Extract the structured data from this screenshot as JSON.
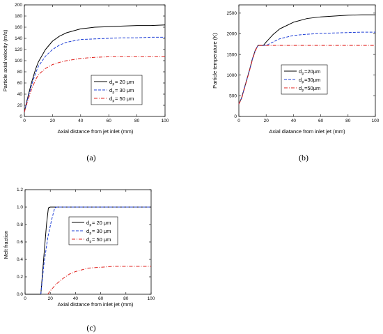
{
  "chart_data": [
    {
      "type": "line",
      "panel_label": "(a)",
      "xlabel": "Axial distance from jet inlet (mm)",
      "ylabel": "Particle axial velocity (m/s)",
      "xlim": [
        0,
        100
      ],
      "ylim": [
        0,
        200
      ],
      "xticks": [
        0,
        20,
        40,
        60,
        80,
        100
      ],
      "yticks": [
        0,
        20,
        40,
        60,
        80,
        100,
        120,
        140,
        160,
        180,
        200
      ],
      "legend_position": "right",
      "series": [
        {
          "name": "dp= 20 μm",
          "color": "#000000",
          "dash": "solid",
          "x": [
            0,
            2,
            5,
            8,
            10,
            15,
            20,
            25,
            30,
            40,
            50,
            60,
            70,
            80,
            90,
            100
          ],
          "y": [
            8,
            30,
            60,
            85,
            98,
            120,
            135,
            144,
            150,
            157,
            160,
            161,
            162,
            163,
            163,
            164
          ]
        },
        {
          "name": "dp= 30 μm",
          "color": "#1f3fd6",
          "dash": "dashed",
          "x": [
            0,
            2,
            5,
            8,
            10,
            15,
            20,
            25,
            30,
            40,
            50,
            60,
            70,
            80,
            90,
            100
          ],
          "y": [
            8,
            28,
            55,
            78,
            90,
            108,
            120,
            128,
            133,
            138,
            139,
            140,
            141,
            141,
            142,
            142
          ]
        },
        {
          "name": "dp= 50 μm",
          "color": "#e0201c",
          "dash": "dashdot",
          "x": [
            0,
            2,
            5,
            8,
            10,
            15,
            20,
            25,
            30,
            40,
            50,
            60,
            70,
            80,
            90,
            100
          ],
          "y": [
            8,
            25,
            48,
            66,
            75,
            86,
            93,
            97,
            100,
            104,
            106,
            107,
            107,
            107,
            107,
            107
          ]
        }
      ],
      "legend": [
        "d",
        "p",
        "= 20 μm",
        "d",
        "p",
        "= 30 μm",
        "d",
        "p",
        "= 50 μm"
      ]
    },
    {
      "type": "line",
      "panel_label": "(b)",
      "xlabel": "Axial diatance from inlet jet (mm)",
      "ylabel": "Particle temperature (K)",
      "xlim": [
        0,
        100
      ],
      "ylim": [
        0,
        2700
      ],
      "xticks": [
        0,
        20,
        40,
        60,
        80,
        100
      ],
      "yticks": [
        0,
        500,
        1000,
        1500,
        2000,
        2500
      ],
      "legend_position": "right",
      "series": [
        {
          "name": "dp=20μm",
          "color": "#000000",
          "dash": "solid",
          "x": [
            0,
            2,
            5,
            8,
            10,
            12,
            14,
            18,
            20,
            25,
            30,
            40,
            50,
            60,
            70,
            80,
            90,
            100
          ],
          "y": [
            300,
            450,
            800,
            1150,
            1400,
            1600,
            1720,
            1720,
            1800,
            1980,
            2120,
            2280,
            2370,
            2410,
            2430,
            2450,
            2460,
            2460
          ]
        },
        {
          "name": "dp=30μm",
          "color": "#1f3fd6",
          "dash": "dashed",
          "x": [
            0,
            2,
            5,
            8,
            10,
            12,
            14,
            20,
            25,
            30,
            40,
            50,
            60,
            70,
            80,
            90,
            100
          ],
          "y": [
            300,
            440,
            790,
            1140,
            1390,
            1590,
            1720,
            1720,
            1800,
            1880,
            1960,
            1990,
            2010,
            2020,
            2030,
            2040,
            2040
          ]
        },
        {
          "name": "dp=50μm",
          "color": "#e0201c",
          "dash": "dashdot",
          "x": [
            0,
            2,
            5,
            8,
            10,
            12,
            14,
            20,
            40,
            60,
            80,
            100
          ],
          "y": [
            300,
            430,
            780,
            1130,
            1380,
            1580,
            1720,
            1720,
            1720,
            1720,
            1720,
            1720
          ]
        }
      ],
      "legend": [
        "d",
        "p",
        "=20μm",
        "d",
        "p",
        "=30μm",
        "d",
        "p",
        "=50μm"
      ]
    },
    {
      "type": "line",
      "panel_label": "(c)",
      "xlabel": "Axial distance from inlet jet (mm)",
      "ylabel": "Melt fraction",
      "xlim": [
        0,
        100
      ],
      "ylim": [
        0,
        1.2
      ],
      "xticks": [
        0,
        20,
        40,
        60,
        80,
        100
      ],
      "yticks": [
        0.0,
        0.2,
        0.4,
        0.6,
        0.8,
        1.0,
        1.2
      ],
      "legend_position": "right",
      "series": [
        {
          "name": "dp= 20 μm",
          "color": "#000000",
          "dash": "solid",
          "x": [
            0,
            12.5,
            15,
            17,
            18.5,
            20,
            40,
            60,
            80,
            100
          ],
          "y": [
            0,
            0,
            0.45,
            0.8,
            0.99,
            1.0,
            1.0,
            1.0,
            1.0,
            1.0
          ]
        },
        {
          "name": "dp= 30 μm",
          "color": "#1f3fd6",
          "dash": "dashed",
          "x": [
            12.5,
            15,
            18,
            21,
            23.5,
            25,
            40,
            60,
            80,
            100
          ],
          "y": [
            0,
            0.35,
            0.65,
            0.85,
            0.99,
            1.0,
            1.0,
            1.0,
            1.0,
            1.0
          ]
        },
        {
          "name": "dp= 50 μm",
          "color": "#e0201c",
          "dash": "dashdot",
          "x": [
            18,
            20,
            25,
            30,
            35,
            40,
            45,
            50,
            60,
            70,
            80,
            90,
            100
          ],
          "y": [
            0,
            0.04,
            0.12,
            0.18,
            0.23,
            0.26,
            0.28,
            0.3,
            0.31,
            0.32,
            0.32,
            0.32,
            0.32
          ]
        }
      ],
      "legend": [
        "d",
        "p",
        "= 20 μm",
        "d",
        "p",
        "= 30 μm",
        "d",
        "p",
        "= 50 μm"
      ]
    }
  ]
}
